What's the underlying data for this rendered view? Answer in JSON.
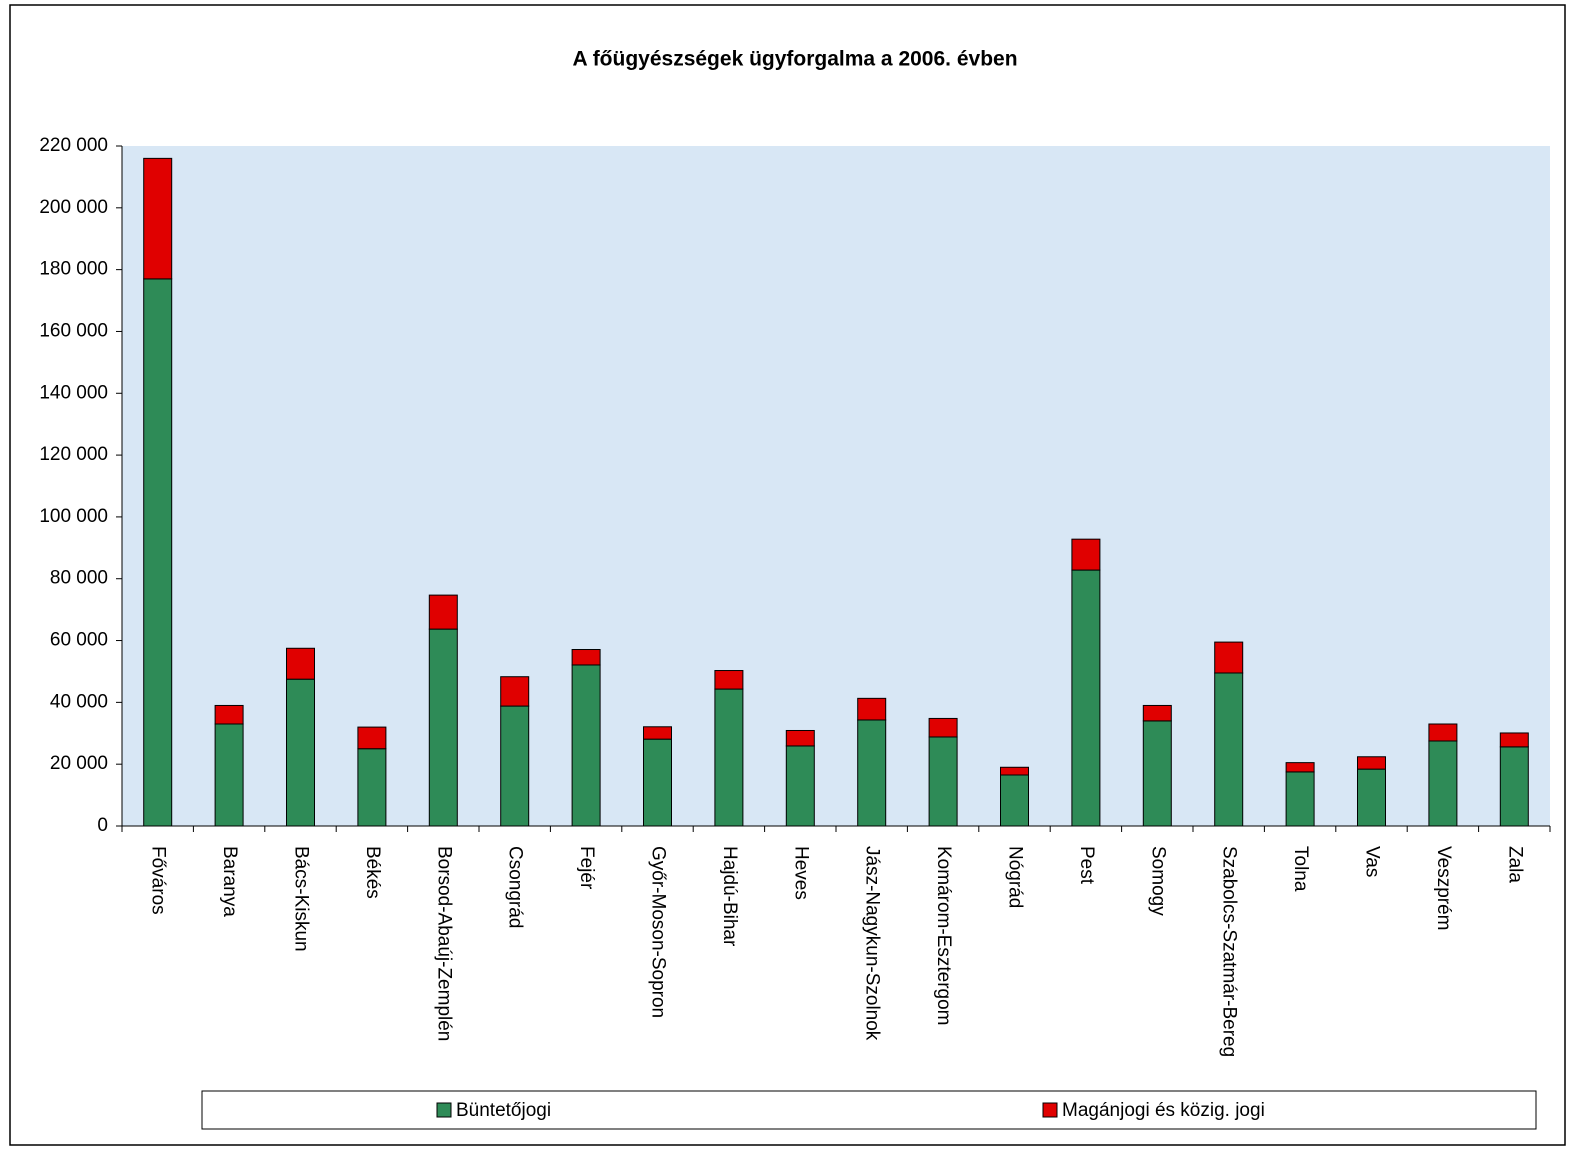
{
  "chart_data": {
    "type": "stacked_bar",
    "title": "A főügyészségek ügyforgalma a 2006. évben",
    "categories": [
      "Főváros",
      "Baranya",
      "Bács-Kiskun",
      "Békés",
      "Borsod-Abaúj-Zemplén",
      "Csongrád",
      "Fejér",
      "Győr-Moson-Sopron",
      "Hajdú-Bihar",
      "Heves",
      "Jász-Nagykun-Szolnok",
      "Komárom-Esztergom",
      "Nógrád",
      "Pest",
      "Somogy",
      "Szabolcs-Szatmár-Bereg",
      "Tolna",
      "Vas",
      "Veszprém",
      "Zala"
    ],
    "series": [
      {
        "name": "Büntetőjogi",
        "color": "#2e8b57",
        "values": [
          177000,
          33000,
          47500,
          25000,
          63700,
          38800,
          52100,
          28100,
          44300,
          25900,
          34300,
          28800,
          16500,
          82800,
          34000,
          49500,
          17500,
          18400,
          27500,
          25600
        ]
      },
      {
        "name": "Magánjogi és közig. jogi",
        "color": "#e00000",
        "values": [
          39000,
          6000,
          10000,
          7000,
          11000,
          9500,
          5000,
          4000,
          6000,
          5000,
          7000,
          6000,
          2500,
          10000,
          5000,
          10000,
          3000,
          4000,
          5500,
          4500
        ]
      }
    ],
    "ylim": [
      0,
      220000
    ],
    "yticks": [
      0,
      {
        "value": 20000,
        "label": "20 000"
      },
      {
        "value": 40000,
        "label": "40 000"
      },
      {
        "value": 60000,
        "label": "60 000"
      },
      {
        "value": 80000,
        "label": "80 000"
      },
      {
        "value": 100000,
        "label": "100 000"
      },
      {
        "value": 120000,
        "label": "120 000"
      },
      {
        "value": 140000,
        "label": "140 000"
      },
      {
        "value": 160000,
        "label": "160 000"
      },
      {
        "value": 180000,
        "label": "180 000"
      },
      {
        "value": 200000,
        "label": "200 000"
      },
      {
        "value": 220000,
        "label": "220 000"
      }
    ],
    "legend": "bottom"
  }
}
